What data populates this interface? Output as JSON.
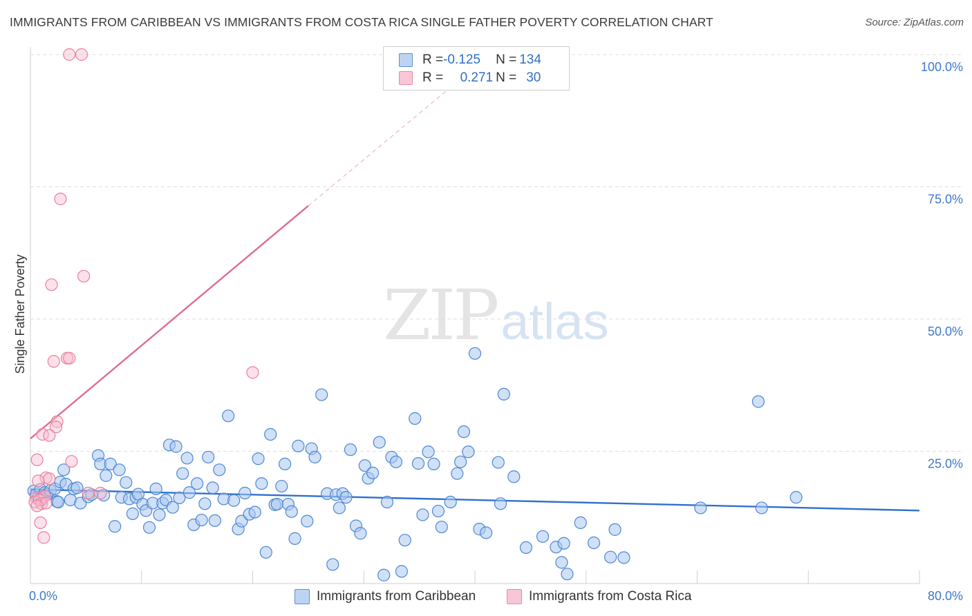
{
  "title": "IMMIGRANTS FROM CARIBBEAN VS IMMIGRANTS FROM COSTA RICA SINGLE FATHER POVERTY CORRELATION CHART",
  "source": "Source: ZipAtlas.com",
  "watermark": {
    "zip": "ZIP",
    "atlas": "atlas"
  },
  "legend": {
    "rows": [
      {
        "r_label": "R = ",
        "r_value": "-0.125",
        "n_label": "N = ",
        "n_value": "134"
      },
      {
        "r_label": "R = ",
        "r_value": "0.271",
        "n_label": "N = ",
        "n_value": "30"
      }
    ]
  },
  "colors": {
    "caribbean_fill": "#a9c7ee",
    "caribbean_stroke": "#4c86d4",
    "caribbean_line": "#2f6fcf",
    "costarica_fill": "#f7bccd",
    "costarica_stroke": "#e97fa0",
    "costarica_line": "#e06b92",
    "grid": "#dedede",
    "tick_text": "#3d78c9"
  },
  "chart_data": {
    "type": "scatter",
    "title": "IMMIGRANTS FROM CARIBBEAN VS IMMIGRANTS FROM COSTA RICA SINGLE FATHER POVERTY CORRELATION CHART",
    "xlabel": "",
    "ylabel": "Single Father Poverty",
    "xlim": [
      0,
      80
    ],
    "ylim": [
      0,
      105
    ],
    "x_tick_labels": [
      "0.0%",
      "80.0%"
    ],
    "y_ticks": [
      25,
      50,
      75,
      100
    ],
    "y_tick_labels": [
      "25.0%",
      "50.0%",
      "75.0%",
      "100.0%"
    ],
    "grid": "horizontal dashed",
    "legend_placement": "bottom",
    "series": [
      {
        "name": "Immigrants from Caribbean",
        "R": -0.125,
        "N": 134,
        "trend": {
          "x": [
            0,
            80
          ],
          "y": [
            17.8,
            13.8
          ]
        },
        "points": [
          [
            0.3,
            17.5
          ],
          [
            0.5,
            16.8
          ],
          [
            0.7,
            16.2
          ],
          [
            0.9,
            17.8
          ],
          [
            1.1,
            16.5
          ],
          [
            1.3,
            17.2
          ],
          [
            1.5,
            16.9
          ],
          [
            1.8,
            17.6
          ],
          [
            2.2,
            17.9
          ],
          [
            2.4,
            15.5
          ],
          [
            2.7,
            19.2
          ],
          [
            3.0,
            21.5
          ],
          [
            3.2,
            18.8
          ],
          [
            3.6,
            15.8
          ],
          [
            3.9,
            17.9
          ],
          [
            4.2,
            18.1
          ],
          [
            4.5,
            15.2
          ],
          [
            5.2,
            16.4
          ],
          [
            5.5,
            16.8
          ],
          [
            6.1,
            24.2
          ],
          [
            6.3,
            22.6
          ],
          [
            6.6,
            16.7
          ],
          [
            6.8,
            20.4
          ],
          [
            7.2,
            22.6
          ],
          [
            7.6,
            10.8
          ],
          [
            8.0,
            21.5
          ],
          [
            8.2,
            16.3
          ],
          [
            8.6,
            19.1
          ],
          [
            8.9,
            16.0
          ],
          [
            9.2,
            13.2
          ],
          [
            9.5,
            16.3
          ],
          [
            9.7,
            16.9
          ],
          [
            10.1,
            15.0
          ],
          [
            10.4,
            13.8
          ],
          [
            10.7,
            10.6
          ],
          [
            11.0,
            15.2
          ],
          [
            11.3,
            17.9
          ],
          [
            11.6,
            13.0
          ],
          [
            11.9,
            15.2
          ],
          [
            12.2,
            15.8
          ],
          [
            12.5,
            26.2
          ],
          [
            12.8,
            14.4
          ],
          [
            13.1,
            25.9
          ],
          [
            13.4,
            16.2
          ],
          [
            13.7,
            20.8
          ],
          [
            14.1,
            23.7
          ],
          [
            14.3,
            17.2
          ],
          [
            14.7,
            11.1
          ],
          [
            15.0,
            18.9
          ],
          [
            15.4,
            12.0
          ],
          [
            15.7,
            15.1
          ],
          [
            16.0,
            23.9
          ],
          [
            16.4,
            18.1
          ],
          [
            16.6,
            11.9
          ],
          [
            17.0,
            21.5
          ],
          [
            17.4,
            16.0
          ],
          [
            17.8,
            31.7
          ],
          [
            18.3,
            15.7
          ],
          [
            18.7,
            10.3
          ],
          [
            19.0,
            11.8
          ],
          [
            19.3,
            17.1
          ],
          [
            19.7,
            13.1
          ],
          [
            20.2,
            13.5
          ],
          [
            20.5,
            23.6
          ],
          [
            20.8,
            18.9
          ],
          [
            21.2,
            5.9
          ],
          [
            21.6,
            28.2
          ],
          [
            22.0,
            14.9
          ],
          [
            22.2,
            15.0
          ],
          [
            22.6,
            18.4
          ],
          [
            22.9,
            22.6
          ],
          [
            23.2,
            15.0
          ],
          [
            23.5,
            13.6
          ],
          [
            23.8,
            8.5
          ],
          [
            24.1,
            26.0
          ],
          [
            24.9,
            11.8
          ],
          [
            25.3,
            25.5
          ],
          [
            25.6,
            23.9
          ],
          [
            26.2,
            35.7
          ],
          [
            26.7,
            17.0
          ],
          [
            27.2,
            3.6
          ],
          [
            27.5,
            16.8
          ],
          [
            27.8,
            14.3
          ],
          [
            28.1,
            17.0
          ],
          [
            28.4,
            16.3
          ],
          [
            28.8,
            25.3
          ],
          [
            29.3,
            10.9
          ],
          [
            29.7,
            9.5
          ],
          [
            30.1,
            22.3
          ],
          [
            30.4,
            19.9
          ],
          [
            30.8,
            20.9
          ],
          [
            31.4,
            26.7
          ],
          [
            31.8,
            1.6
          ],
          [
            32.1,
            15.4
          ],
          [
            32.5,
            23.9
          ],
          [
            32.9,
            23.0
          ],
          [
            33.4,
            2.3
          ],
          [
            33.7,
            8.2
          ],
          [
            34.6,
            31.2
          ],
          [
            34.9,
            22.7
          ],
          [
            35.3,
            13.0
          ],
          [
            35.8,
            24.9
          ],
          [
            36.3,
            22.6
          ],
          [
            36.7,
            13.7
          ],
          [
            37.0,
            10.7
          ],
          [
            37.8,
            15.4
          ],
          [
            38.4,
            20.8
          ],
          [
            38.7,
            23.0
          ],
          [
            39.0,
            28.7
          ],
          [
            39.4,
            24.9
          ],
          [
            40.0,
            43.5
          ],
          [
            40.4,
            10.3
          ],
          [
            41.0,
            9.6
          ],
          [
            42.1,
            22.9
          ],
          [
            42.3,
            15.1
          ],
          [
            42.6,
            35.8
          ],
          [
            43.5,
            20.2
          ],
          [
            44.6,
            6.8
          ],
          [
            46.1,
            8.9
          ],
          [
            47.3,
            6.9
          ],
          [
            47.8,
            4.0
          ],
          [
            48.0,
            7.6
          ],
          [
            48.3,
            1.8
          ],
          [
            49.5,
            11.5
          ],
          [
            50.7,
            7.7
          ],
          [
            52.2,
            5.0
          ],
          [
            52.6,
            10.2
          ],
          [
            53.4,
            4.9
          ],
          [
            60.3,
            14.3
          ],
          [
            65.5,
            34.4
          ],
          [
            65.8,
            14.3
          ],
          [
            68.9,
            16.3
          ],
          [
            2.5,
            15.4
          ],
          [
            1.0,
            15.8
          ]
        ]
      },
      {
        "name": "Immigrants from Costa Rica",
        "R": 0.271,
        "N": 30,
        "trend": {
          "x": [
            0,
            25
          ],
          "y": [
            27.4,
            71.4
          ]
        },
        "trend_dashed": {
          "x": [
            25,
            38.5
          ],
          "y": [
            71.4,
            95.0
          ]
        },
        "points": [
          [
            3.5,
            100.0
          ],
          [
            4.6,
            100.0
          ],
          [
            2.7,
            72.7
          ],
          [
            1.9,
            56.5
          ],
          [
            4.8,
            58.1
          ],
          [
            2.1,
            42.0
          ],
          [
            3.3,
            42.6
          ],
          [
            3.5,
            42.6
          ],
          [
            20.0,
            39.9
          ],
          [
            2.4,
            30.6
          ],
          [
            2.3,
            29.6
          ],
          [
            1.1,
            28.2
          ],
          [
            1.7,
            28.0
          ],
          [
            0.6,
            23.4
          ],
          [
            3.7,
            23.1
          ],
          [
            1.4,
            20.0
          ],
          [
            1.7,
            19.8
          ],
          [
            0.7,
            19.4
          ],
          [
            5.2,
            17.1
          ],
          [
            6.3,
            17.1
          ],
          [
            0.5,
            16.3
          ],
          [
            1.0,
            16.1
          ],
          [
            1.3,
            16.5
          ],
          [
            0.4,
            15.4
          ],
          [
            0.8,
            15.8
          ],
          [
            1.0,
            15.1
          ],
          [
            1.4,
            15.2
          ],
          [
            0.6,
            14.7
          ],
          [
            0.9,
            11.5
          ],
          [
            1.2,
            8.7
          ]
        ]
      }
    ]
  },
  "bottom_legend": {
    "items": [
      {
        "label": "Immigrants from Caribbean"
      },
      {
        "label": "Immigrants from Costa Rica"
      }
    ]
  }
}
